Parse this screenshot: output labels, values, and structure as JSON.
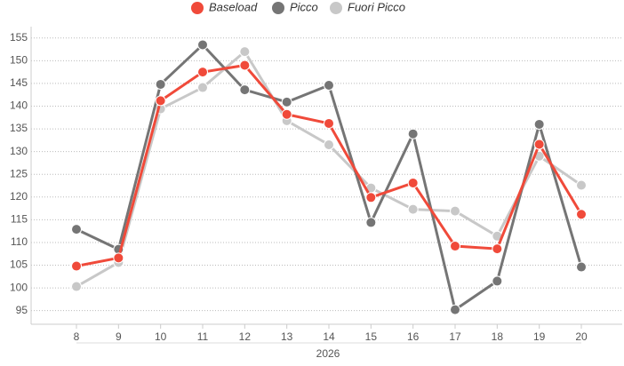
{
  "chart_data": {
    "type": "line",
    "x_label": "2026",
    "categories": [
      "8",
      "9",
      "10",
      "11",
      "12",
      "13",
      "14",
      "15",
      "16",
      "17",
      "18",
      "19",
      "20"
    ],
    "series": [
      {
        "name": "Baseload",
        "color": "#f04a3a",
        "values": [
          104.8,
          106.6,
          141.2,
          147.5,
          149,
          138.2,
          136.2,
          119.9,
          123.1,
          109.2,
          108.6,
          131.6,
          116.2
        ]
      },
      {
        "name": "Picco",
        "color": "#757575",
        "values": [
          112.9,
          108.5,
          144.8,
          153.5,
          143.6,
          140.9,
          144.6,
          114.4,
          133.9,
          95.2,
          101.5,
          136,
          104.6
        ]
      },
      {
        "name": "Fuori Picco",
        "color": "#c8c8c8",
        "values": [
          100.3,
          105.6,
          139.4,
          144.1,
          152,
          136.8,
          131.5,
          122,
          117.3,
          116.9,
          111.4,
          129,
          122.6
        ]
      }
    ],
    "ylim": [
      92,
      157.5
    ],
    "yticks": [
      95,
      100,
      105,
      110,
      115,
      120,
      125,
      130,
      135,
      140,
      145,
      150,
      155
    ],
    "grid": true,
    "legend": "top"
  }
}
